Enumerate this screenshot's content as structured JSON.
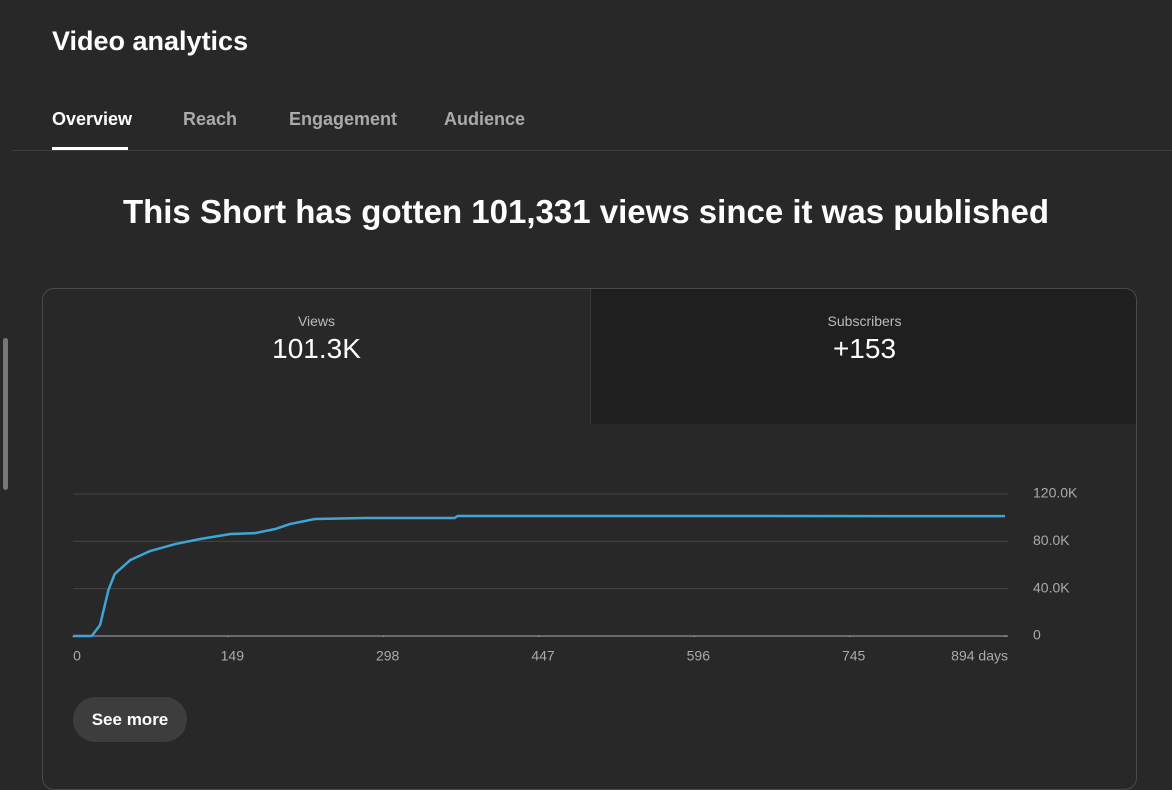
{
  "header": {
    "title": "Video analytics"
  },
  "tabs": [
    "Overview",
    "Reach",
    "Engagement",
    "Audience"
  ],
  "headline": "This Short has gotten 101,331 views since it was published",
  "metrics": [
    {
      "label": "Views",
      "value": "101.3K"
    },
    {
      "label": "Subscribers",
      "value": "+153"
    }
  ],
  "chart_data": {
    "type": "line",
    "color": "#3ea6d6",
    "x": [
      0,
      18,
      26,
      34,
      40,
      55,
      74,
      98,
      122,
      151,
      175,
      194,
      208,
      232,
      280,
      366,
      369,
      894
    ],
    "values": [
      0,
      0,
      9300,
      38900,
      52400,
      64200,
      71800,
      77700,
      82000,
      86200,
      87000,
      90400,
      94600,
      98900,
      99700,
      99700,
      101400,
      101331
    ],
    "xlim": [
      0,
      894
    ],
    "xticks": [
      0,
      149,
      298,
      447,
      596,
      745,
      {
        "value": 894,
        "label": "894 days"
      }
    ],
    "ylim": [
      0,
      120000
    ],
    "yticks": [
      0,
      {
        "value": 40000,
        "label": "40.0K"
      },
      {
        "value": 80000,
        "label": "80.0K"
      },
      {
        "value": 120000,
        "label": "120.0K"
      }
    ],
    "grid": true
  },
  "button": "See more"
}
